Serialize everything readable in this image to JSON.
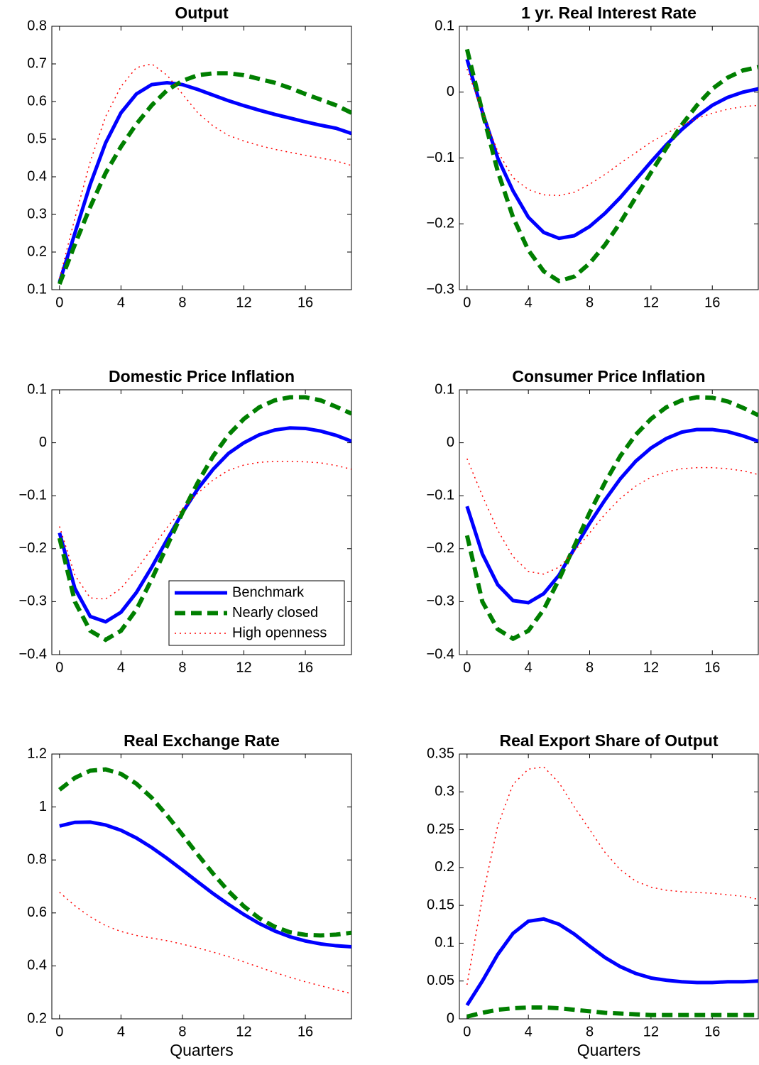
{
  "chart_data": [
    {
      "type": "line",
      "title": "Output",
      "x": [
        0,
        1,
        2,
        3,
        4,
        5,
        6,
        7,
        8,
        9,
        10,
        11,
        12,
        13,
        14,
        15,
        16,
        17,
        18,
        19
      ],
      "xlim": [
        -0.5,
        19
      ],
      "xticks": [
        0,
        4,
        8,
        12,
        16
      ],
      "ylim": [
        0.1,
        0.8
      ],
      "yticks": [
        0.1,
        0.2,
        0.3,
        0.4,
        0.5,
        0.6,
        0.7,
        0.8
      ],
      "series": [
        {
          "color": "#0000ff",
          "style": "solid",
          "values": [
            0.12,
            0.25,
            0.38,
            0.49,
            0.57,
            0.62,
            0.645,
            0.65,
            0.645,
            0.632,
            0.617,
            0.602,
            0.589,
            0.577,
            0.566,
            0.556,
            0.546,
            0.537,
            0.529,
            0.515
          ]
        },
        {
          "color": "#007f00",
          "style": "dashed",
          "values": [
            0.115,
            0.22,
            0.32,
            0.41,
            0.48,
            0.54,
            0.59,
            0.63,
            0.655,
            0.67,
            0.675,
            0.675,
            0.67,
            0.66,
            0.65,
            0.636,
            0.62,
            0.605,
            0.59,
            0.57
          ]
        },
        {
          "color": "#ff0000",
          "style": "dotted",
          "values": [
            0.13,
            0.29,
            0.44,
            0.56,
            0.64,
            0.69,
            0.7,
            0.67,
            0.62,
            0.57,
            0.535,
            0.51,
            0.495,
            0.483,
            0.473,
            0.465,
            0.457,
            0.45,
            0.442,
            0.43
          ]
        }
      ]
    },
    {
      "type": "line",
      "title": "1 yr. Real Interest Rate",
      "x": [
        0,
        1,
        2,
        3,
        4,
        5,
        6,
        7,
        8,
        9,
        10,
        11,
        12,
        13,
        14,
        15,
        16,
        17,
        18,
        19
      ],
      "xlim": [
        -0.5,
        19
      ],
      "xticks": [
        0,
        4,
        8,
        12,
        16
      ],
      "ylim": [
        -0.3,
        0.1
      ],
      "yticks": [
        {
          "value": -0.3,
          "label": "−0.3"
        },
        {
          "value": -0.2,
          "label": "−0.2"
        },
        {
          "value": -0.1,
          "label": "−0.1"
        },
        0,
        0.1
      ],
      "series": [
        {
          "color": "#0000ff",
          "style": "solid",
          "values": [
            0.05,
            -0.03,
            -0.1,
            -0.15,
            -0.19,
            -0.213,
            -0.222,
            -0.218,
            -0.204,
            -0.184,
            -0.16,
            -0.133,
            -0.106,
            -0.08,
            -0.057,
            -0.037,
            -0.02,
            -0.008,
            0.0,
            0.005
          ]
        },
        {
          "color": "#007f00",
          "style": "dashed",
          "values": [
            0.065,
            -0.03,
            -0.12,
            -0.19,
            -0.24,
            -0.272,
            -0.287,
            -0.28,
            -0.26,
            -0.232,
            -0.198,
            -0.16,
            -0.122,
            -0.085,
            -0.05,
            -0.02,
            0.005,
            0.022,
            0.033,
            0.038
          ]
        },
        {
          "color": "#ff0000",
          "style": "dotted",
          "values": [
            0.035,
            -0.03,
            -0.09,
            -0.13,
            -0.148,
            -0.156,
            -0.157,
            -0.152,
            -0.14,
            -0.125,
            -0.108,
            -0.092,
            -0.076,
            -0.063,
            -0.05,
            -0.04,
            -0.032,
            -0.026,
            -0.022,
            -0.02
          ]
        }
      ]
    },
    {
      "type": "line",
      "title": "Domestic Price Inflation",
      "x": [
        0,
        1,
        2,
        3,
        4,
        5,
        6,
        7,
        8,
        9,
        10,
        11,
        12,
        13,
        14,
        15,
        16,
        17,
        18,
        19
      ],
      "xlim": [
        -0.5,
        19
      ],
      "xticks": [
        0,
        4,
        8,
        12,
        16
      ],
      "ylim": [
        -0.4,
        0.1
      ],
      "yticks": [
        {
          "value": -0.4,
          "label": "−0.4"
        },
        {
          "value": -0.3,
          "label": "−0.3"
        },
        {
          "value": -0.2,
          "label": "−0.2"
        },
        {
          "value": -0.1,
          "label": "−0.1"
        },
        0,
        0.1
      ],
      "legend": "lower right",
      "series": [
        {
          "name": "Benchmark",
          "color": "#0000ff",
          "style": "solid",
          "values": [
            -0.17,
            -0.275,
            -0.328,
            -0.338,
            -0.32,
            -0.283,
            -0.235,
            -0.183,
            -0.132,
            -0.087,
            -0.05,
            -0.02,
            0.0,
            0.015,
            0.024,
            0.028,
            0.027,
            0.022,
            0.014,
            0.003
          ]
        },
        {
          "name": "Nearly closed",
          "color": "#007f00",
          "style": "dashed",
          "values": [
            -0.18,
            -0.3,
            -0.355,
            -0.372,
            -0.355,
            -0.315,
            -0.258,
            -0.195,
            -0.132,
            -0.075,
            -0.025,
            0.015,
            0.045,
            0.067,
            0.08,
            0.086,
            0.086,
            0.08,
            0.068,
            0.055
          ]
        },
        {
          "name": "High openness",
          "color": "#ff0000",
          "style": "dotted",
          "values": [
            -0.158,
            -0.25,
            -0.293,
            -0.295,
            -0.275,
            -0.24,
            -0.2,
            -0.16,
            -0.125,
            -0.095,
            -0.07,
            -0.052,
            -0.042,
            -0.037,
            -0.035,
            -0.035,
            -0.036,
            -0.038,
            -0.043,
            -0.05
          ]
        }
      ]
    },
    {
      "type": "line",
      "title": "Consumer Price Inflation",
      "x": [
        0,
        1,
        2,
        3,
        4,
        5,
        6,
        7,
        8,
        9,
        10,
        11,
        12,
        13,
        14,
        15,
        16,
        17,
        18,
        19
      ],
      "xlim": [
        -0.5,
        19
      ],
      "xticks": [
        0,
        4,
        8,
        12,
        16
      ],
      "ylim": [
        -0.4,
        0.1
      ],
      "yticks": [
        {
          "value": -0.4,
          "label": "−0.4"
        },
        {
          "value": -0.3,
          "label": "−0.3"
        },
        {
          "value": -0.2,
          "label": "−0.2"
        },
        {
          "value": -0.1,
          "label": "−0.1"
        },
        0,
        0.1
      ],
      "series": [
        {
          "color": "#0000ff",
          "style": "solid",
          "values": [
            -0.12,
            -0.21,
            -0.268,
            -0.298,
            -0.302,
            -0.285,
            -0.25,
            -0.2,
            -0.152,
            -0.108,
            -0.068,
            -0.035,
            -0.01,
            0.008,
            0.02,
            0.025,
            0.025,
            0.021,
            0.013,
            0.003
          ]
        },
        {
          "color": "#007f00",
          "style": "dashed",
          "values": [
            -0.175,
            -0.3,
            -0.352,
            -0.37,
            -0.355,
            -0.315,
            -0.258,
            -0.195,
            -0.132,
            -0.075,
            -0.025,
            0.015,
            0.045,
            0.067,
            0.08,
            0.086,
            0.085,
            0.078,
            0.066,
            0.052
          ]
        },
        {
          "color": "#ff0000",
          "style": "dotted",
          "values": [
            -0.03,
            -0.1,
            -0.165,
            -0.215,
            -0.243,
            -0.248,
            -0.235,
            -0.205,
            -0.17,
            -0.135,
            -0.105,
            -0.082,
            -0.065,
            -0.055,
            -0.049,
            -0.047,
            -0.047,
            -0.049,
            -0.053,
            -0.06
          ]
        }
      ]
    },
    {
      "type": "line",
      "title": "Real Exchange Rate",
      "xlabel": "Quarters",
      "x": [
        0,
        1,
        2,
        3,
        4,
        5,
        6,
        7,
        8,
        9,
        10,
        11,
        12,
        13,
        14,
        15,
        16,
        17,
        18,
        19
      ],
      "xlim": [
        -0.5,
        19
      ],
      "xticks": [
        0,
        4,
        8,
        12,
        16
      ],
      "ylim": [
        0.2,
        1.2
      ],
      "yticks": [
        0.2,
        0.4,
        0.6,
        0.8,
        1,
        1.2
      ],
      "series": [
        {
          "color": "#0000ff",
          "style": "solid",
          "values": [
            0.928,
            0.942,
            0.943,
            0.932,
            0.912,
            0.883,
            0.847,
            0.806,
            0.762,
            0.717,
            0.673,
            0.632,
            0.594,
            0.56,
            0.532,
            0.51,
            0.494,
            0.483,
            0.476,
            0.472
          ]
        },
        {
          "color": "#007f00",
          "style": "dashed",
          "values": [
            1.065,
            1.11,
            1.137,
            1.142,
            1.125,
            1.088,
            1.035,
            0.968,
            0.895,
            0.82,
            0.748,
            0.682,
            0.625,
            0.58,
            0.548,
            0.527,
            0.517,
            0.515,
            0.518,
            0.525
          ]
        },
        {
          "color": "#ff0000",
          "style": "dotted",
          "values": [
            0.678,
            0.627,
            0.585,
            0.552,
            0.53,
            0.515,
            0.505,
            0.495,
            0.482,
            0.468,
            0.452,
            0.435,
            0.415,
            0.395,
            0.375,
            0.357,
            0.34,
            0.325,
            0.31,
            0.295
          ]
        }
      ]
    },
    {
      "type": "line",
      "title": "Real Export Share of Output",
      "xlabel": "Quarters",
      "x": [
        0,
        1,
        2,
        3,
        4,
        5,
        6,
        7,
        8,
        9,
        10,
        11,
        12,
        13,
        14,
        15,
        16,
        17,
        18,
        19
      ],
      "xlim": [
        -0.5,
        19
      ],
      "xticks": [
        0,
        4,
        8,
        12,
        16
      ],
      "ylim": [
        0,
        0.35
      ],
      "yticks": [
        0,
        0.05,
        0.1,
        0.15,
        0.2,
        0.25,
        0.3,
        0.35
      ],
      "series": [
        {
          "color": "#0000ff",
          "style": "solid",
          "values": [
            0.018,
            0.05,
            0.085,
            0.113,
            0.129,
            0.132,
            0.125,
            0.112,
            0.096,
            0.081,
            0.069,
            0.06,
            0.054,
            0.051,
            0.049,
            0.048,
            0.048,
            0.049,
            0.049,
            0.05
          ]
        },
        {
          "color": "#007f00",
          "style": "dashed",
          "values": [
            0.003,
            0.008,
            0.012,
            0.014,
            0.015,
            0.015,
            0.014,
            0.012,
            0.01,
            0.008,
            0.007,
            0.006,
            0.005,
            0.005,
            0.005,
            0.005,
            0.005,
            0.005,
            0.005,
            0.005
          ]
        },
        {
          "color": "#ff0000",
          "style": "dotted",
          "values": [
            0.045,
            0.16,
            0.255,
            0.31,
            0.33,
            0.333,
            0.312,
            0.28,
            0.25,
            0.22,
            0.197,
            0.182,
            0.174,
            0.17,
            0.168,
            0.167,
            0.166,
            0.164,
            0.162,
            0.158
          ]
        }
      ]
    }
  ]
}
